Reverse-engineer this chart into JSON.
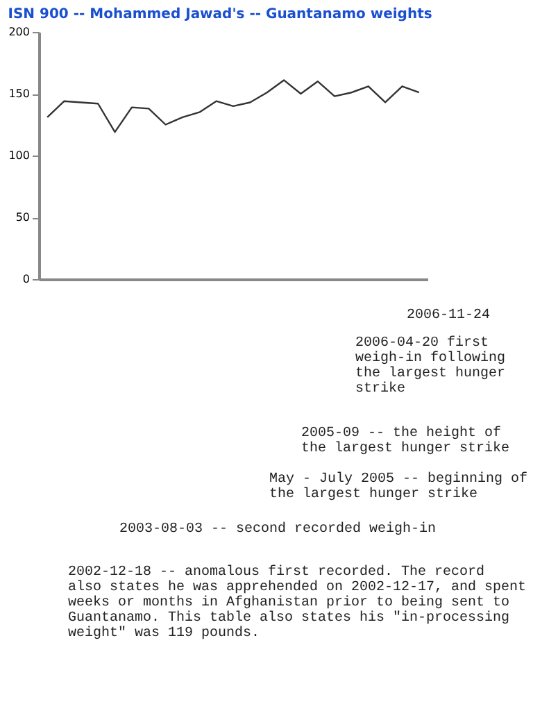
{
  "chart_data": {
    "type": "line",
    "title": "ISN 900 -- Mohammed Jawad's -- Guantanamo weights",
    "categories": [
      null,
      null,
      null,
      null,
      null,
      null,
      null,
      null,
      null,
      null,
      null,
      null,
      null,
      null,
      null,
      null,
      null,
      null,
      null,
      null,
      null,
      null,
      null
    ],
    "series": [
      {
        "color": "#333333",
        "values": [
          131,
          144,
          143,
          142,
          119,
          139,
          138,
          125,
          131,
          135,
          144,
          140,
          143,
          151,
          161,
          150,
          160,
          148,
          151,
          156,
          143,
          156,
          151
        ]
      }
    ],
    "ylim": [
      0,
      200
    ],
    "yticks": [
      0,
      50,
      100,
      150,
      200
    ],
    "grid": false,
    "marker": "none",
    "line_style": "solid",
    "tick_labels": "y",
    "annotations": [
      "2006-11-24",
      "2006-04-20 first weigh-in following the largest hunger strike",
      "2005-09 -- the height of the largest hunger strike",
      "May - July 2005 -- beginning of the largest hunger strike",
      "2003-08-03 -- second recorded weigh-in",
      "2002-12-18 -- anomalous first recorded.  The record also states he was apprehended on 2002-12-17, and spent weeks or months in Afghanistan prior to being sent to Guantanamo.  This table also states his \"in-processing weight\" was 119 pounds."
    ]
  }
}
